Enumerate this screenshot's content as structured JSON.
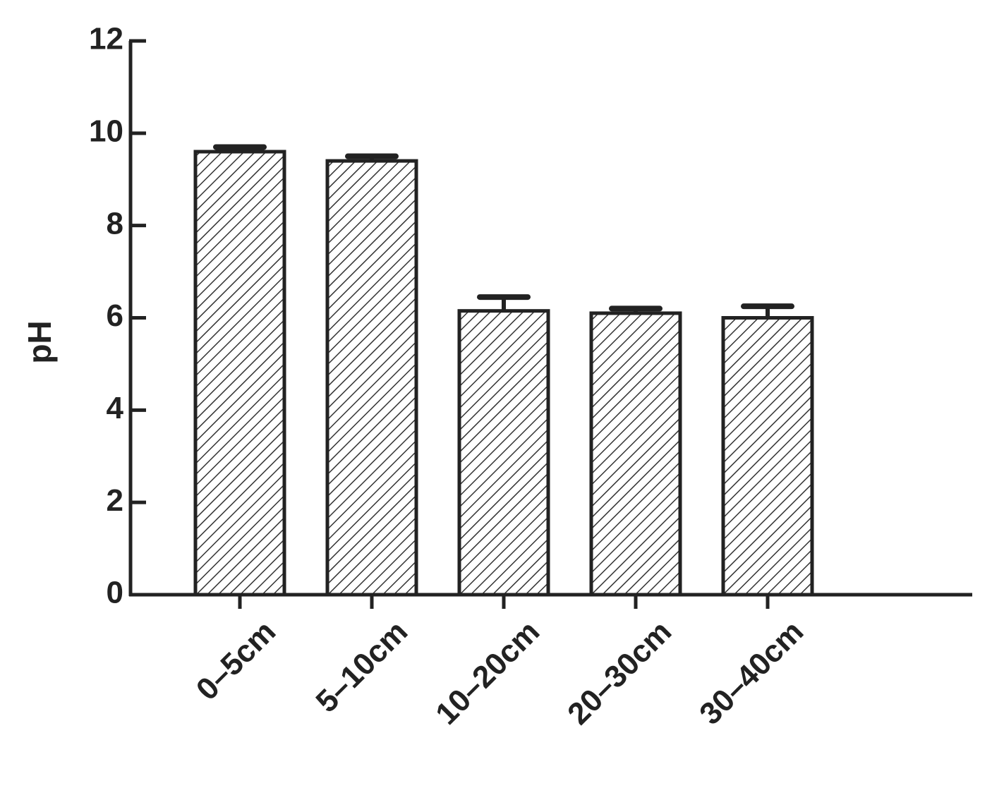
{
  "chart_data": {
    "type": "bar",
    "y_label": "pH",
    "categories": [
      "0–5cm",
      "5–10cm",
      "10–20cm",
      "20–30cm",
      "30–40cm"
    ],
    "values": [
      9.6,
      9.4,
      6.15,
      6.1,
      6.0
    ],
    "errors": [
      0.1,
      0.1,
      0.3,
      0.1,
      0.25
    ],
    "color": "#222222",
    "ylim": [
      0,
      12
    ],
    "yticks": [
      0,
      2,
      4,
      6,
      8,
      10,
      12
    ],
    "grid": false
  }
}
